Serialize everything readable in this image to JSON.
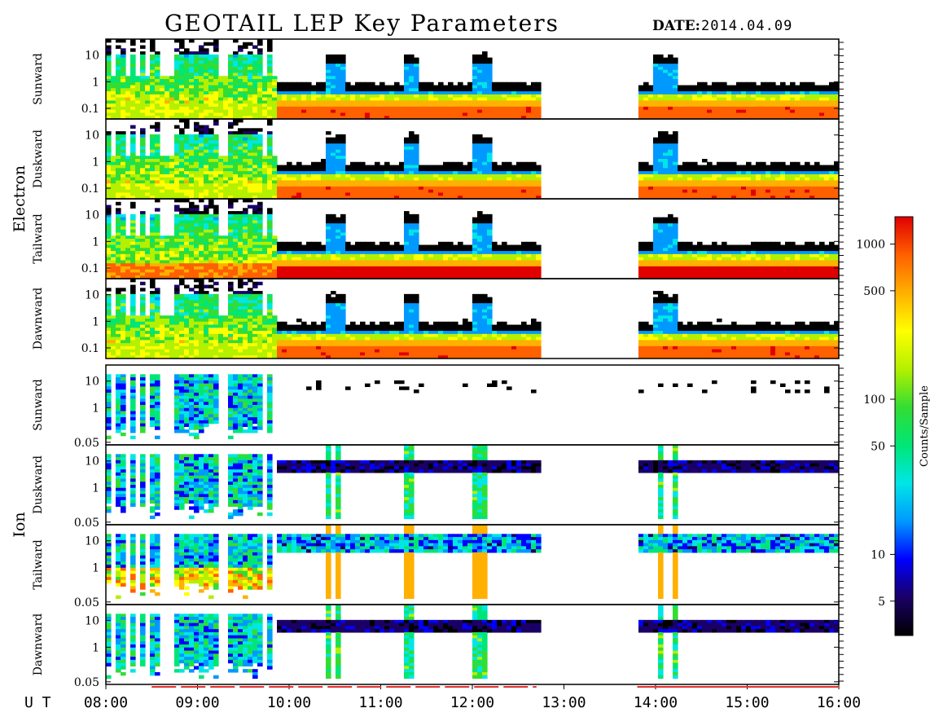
{
  "header": {
    "title": "GEOTAIL LEP Key Parameters",
    "date_label": "DATE:",
    "date_value": "2014.04.09"
  },
  "x_axis": {
    "prefix": "U T",
    "ticks": [
      "08:00",
      "09:00",
      "10:00",
      "11:00",
      "12:00",
      "13:00",
      "14:00",
      "15:00",
      "16:00"
    ]
  },
  "groups": [
    {
      "label": "Electron",
      "panels": [
        0,
        1,
        2,
        3
      ]
    },
    {
      "label": "Ion",
      "panels": [
        4,
        5,
        6,
        7
      ]
    }
  ],
  "colorbar": {
    "label": "Counts/Sample",
    "range": [
      3,
      1500
    ],
    "scale": "log",
    "ticks": [
      "1000",
      "500",
      "100",
      "50",
      "10",
      "5"
    ],
    "tick_values": [
      1000,
      500,
      100,
      50,
      10,
      5
    ],
    "colors": [
      "#000000",
      "#1a0066",
      "#0000ff",
      "#0099ff",
      "#00e6e6",
      "#00e676",
      "#33dd33",
      "#b4f000",
      "#ffff00",
      "#ffb000",
      "#ff6000",
      "#e00000"
    ]
  },
  "chart_data": {
    "type": "heatmap",
    "x_range_hours": [
      8.0,
      16.0
    ],
    "scale": "log",
    "data_gap_hours": [
      12.75,
      13.8
    ],
    "panels": [
      {
        "species": "Electron",
        "direction": "Sunward",
        "y_ticks": [
          "10",
          "1",
          "0.1"
        ],
        "y_tick_values": [
          10,
          1,
          0.1
        ],
        "ylim": [
          0.05,
          40
        ],
        "notes": "upper bound of signal ~0.7 after 09:50, flaring to ~10 at 10:30, 11:20, 12:10, 14:05; orange band near 0.08-0.12"
      },
      {
        "species": "Electron",
        "direction": "Duskward",
        "y_ticks": [
          "10",
          "1",
          "0.1"
        ],
        "y_tick_values": [
          10,
          1,
          0.1
        ],
        "ylim": [
          0.05,
          40
        ],
        "notes": "similar to sunward, orange band near 0.1"
      },
      {
        "species": "Electron",
        "direction": "Tailward",
        "y_ticks": [
          "10",
          "1",
          "0.1"
        ],
        "y_tick_values": [
          10,
          1,
          0.1
        ],
        "ylim": [
          0.05,
          40
        ],
        "notes": "strongest counts, wide orange band 0.06-0.15"
      },
      {
        "species": "Electron",
        "direction": "Dawnward",
        "y_ticks": [
          "10",
          "1",
          "0.1"
        ],
        "y_tick_values": [
          10,
          1,
          0.1
        ],
        "ylim": [
          0.05,
          40
        ],
        "notes": "similar to duskward"
      },
      {
        "species": "Ion",
        "direction": "Sunward",
        "y_ticks": [
          "10",
          "1",
          "0.05"
        ],
        "y_tick_values": [
          10,
          1,
          0.05
        ],
        "ylim": [
          0.05,
          40
        ],
        "notes": "activity mostly before 09:50; sparse dots later"
      },
      {
        "species": "Ion",
        "direction": "Duskward",
        "y_ticks": [
          "10",
          "1",
          "0.05"
        ],
        "y_tick_values": [
          10,
          1,
          0.05
        ],
        "ylim": [
          0.05,
          40
        ],
        "notes": "band near 5-10 after 09:50"
      },
      {
        "species": "Ion",
        "direction": "Tailward",
        "y_ticks": [
          "10",
          "1",
          "0.05"
        ],
        "y_tick_values": [
          10,
          1,
          0.05
        ],
        "ylim": [
          0.05,
          40
        ],
        "notes": "blue/green band 4-15, red spikes at 10:35, 11:20, 12:00"
      },
      {
        "species": "Ion",
        "direction": "Dawnward",
        "y_ticks": [
          "10",
          "1",
          "0.05"
        ],
        "y_tick_values": [
          10,
          1,
          0.05
        ],
        "ylim": [
          0.05,
          40
        ],
        "notes": "band near 5-10 after 09:50"
      }
    ]
  }
}
